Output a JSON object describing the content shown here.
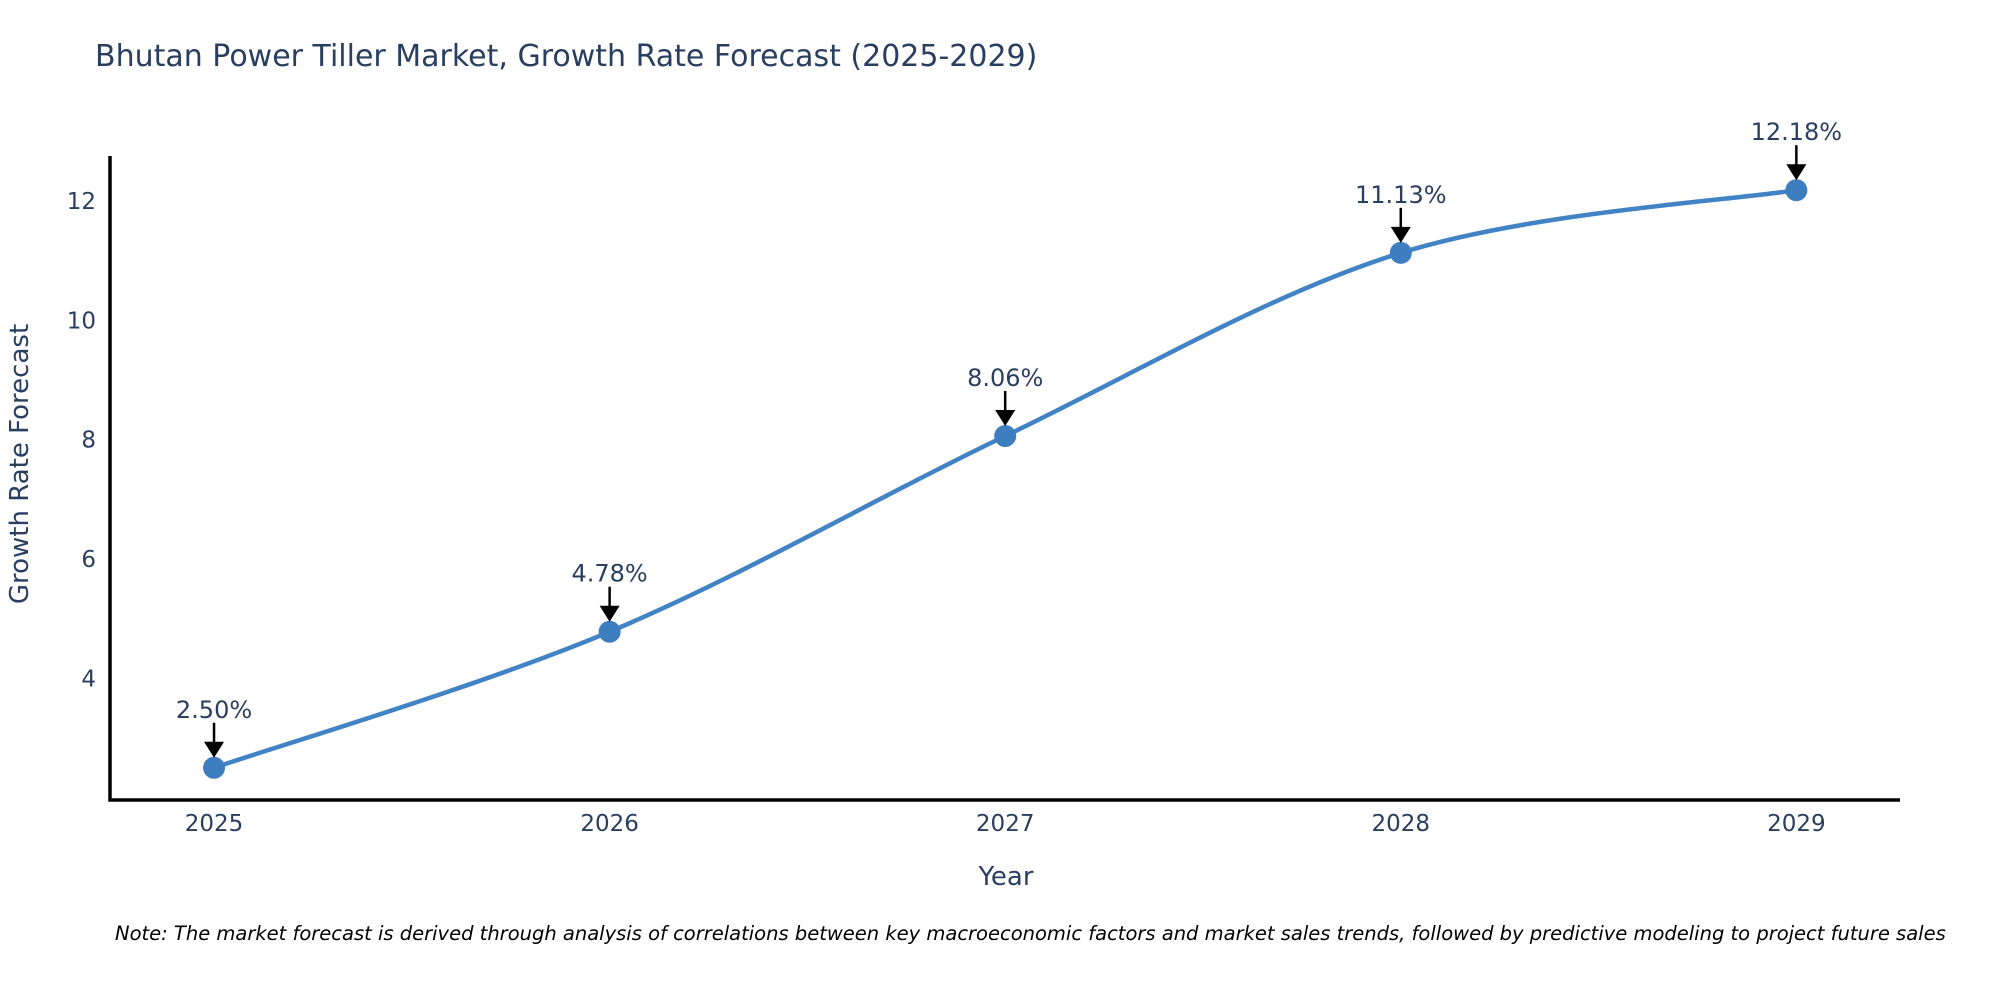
{
  "chart_data": {
    "type": "line",
    "title": "Bhutan Power Tiller Market, Growth Rate Forecast (2025-2029)",
    "xlabel": "Year",
    "ylabel": "Growth Rate Forecast",
    "categories": [
      2025,
      2026,
      2027,
      2028,
      2029
    ],
    "series": [
      {
        "name": "Growth Rate Forecast",
        "values": [
          2.5,
          4.78,
          8.06,
          11.13,
          12.18
        ],
        "point_labels": [
          "2.50%",
          "4.78%",
          "8.06%",
          "11.13%",
          "12.18%"
        ]
      }
    ],
    "yticks": [
      4,
      6,
      8,
      10,
      12
    ],
    "xlim": [
      2024.737,
      2029.262
    ],
    "ylim": [
      1.96,
      12.77
    ],
    "grid": false,
    "legend_position": "none",
    "line_shape": "spline",
    "annotations_have_arrows": true,
    "colors": {
      "line": "#4183c4",
      "marker": "#3d7ec0",
      "axis": "#000000",
      "text": "#2a3f5f",
      "arrow": "#000000",
      "note": "#000000"
    },
    "note": "Note: The market forecast is derived through analysis of correlations between key macroeconomic factors and market sales trends, followed by predictive modeling to project future sales"
  }
}
